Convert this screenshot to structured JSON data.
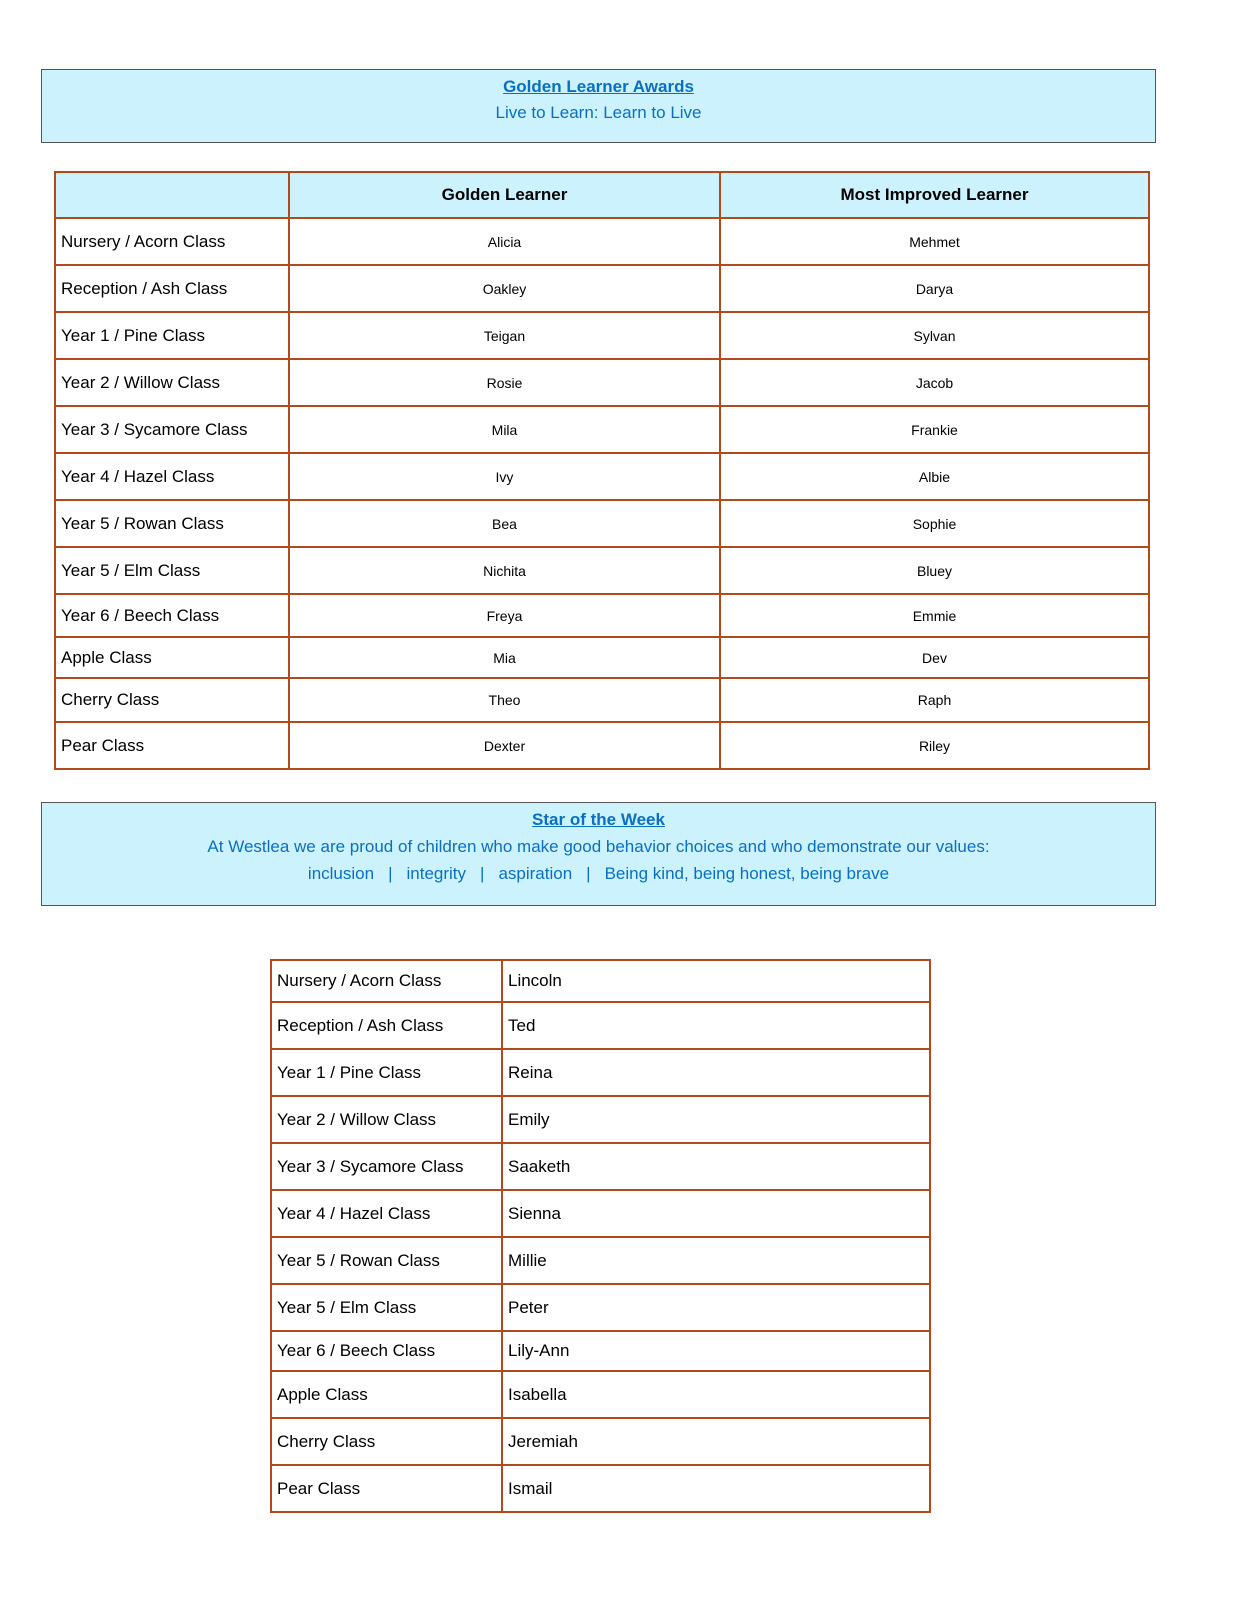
{
  "awards": {
    "title": "Golden Learner Awards",
    "subtitle": "Live to Learn: Learn to Live",
    "headers": [
      "",
      "Golden Learner",
      "Most Improved Learner"
    ],
    "rows": [
      [
        "Nursery / Acorn Class",
        "Alicia",
        "Mehmet"
      ],
      [
        "Reception / Ash Class",
        "Oakley",
        "Darya"
      ],
      [
        "Year 1 / Pine Class",
        "Teigan",
        "Sylvan"
      ],
      [
        "Year 2 / Willow Class",
        "Rosie",
        "Jacob"
      ],
      [
        "Year  3 / Sycamore Class",
        "Mila",
        "Frankie"
      ],
      [
        "Year 4 / Hazel Class",
        "Ivy",
        "Albie"
      ],
      [
        "Year 5 / Rowan Class",
        "Bea",
        "Sophie"
      ],
      [
        "Year 5 / Elm Class",
        "Nichita",
        "Bluey"
      ],
      [
        "Year 6 / Beech Class",
        "Freya",
        "Emmie"
      ],
      [
        "Apple Class",
        "Mia",
        "Dev"
      ],
      [
        "Cherry Class",
        "Theo",
        "Raph"
      ],
      [
        "Pear Class",
        "Dexter",
        "Riley"
      ]
    ]
  },
  "star": {
    "title": "Star of the Week",
    "intro": "At Westlea we are proud of children who make good behavior choices and who demonstrate our values:",
    "values": [
      "inclusion",
      "integrity",
      "aspiration",
      "Being kind, being honest, being brave"
    ],
    "separator": "|",
    "rows": [
      [
        "Nursery / Acorn Class",
        "Lincoln"
      ],
      [
        "Reception / Ash Class",
        "Ted"
      ],
      [
        "Year 1 / Pine Class",
        "Reina"
      ],
      [
        "Year 2 / Willow Class",
        "Emily"
      ],
      [
        "Year  3 / Sycamore Class",
        "Saaketh"
      ],
      [
        "Year 4 / Hazel Class",
        "Sienna"
      ],
      [
        "Year 5 / Rowan Class",
        "Millie"
      ],
      [
        "Year 5 / Elm Class",
        "Peter"
      ],
      [
        "Year 6 / Beech Class",
        "Lily-Ann"
      ],
      [
        "Apple Class",
        "Isabella"
      ],
      [
        "Cherry Class",
        "Jeremiah"
      ],
      [
        "Pear Class",
        "Ismail"
      ]
    ]
  },
  "colors": {
    "banner_bg": "#ccf3fd",
    "banner_text": "#0a6fc2",
    "table_border": "#b24a1c"
  }
}
